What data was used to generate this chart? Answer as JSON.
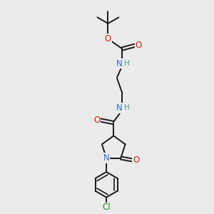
{
  "background_color": "#ebebeb",
  "bond_color": "#1a1a1a",
  "N_color": "#3a6abf",
  "O_color": "#cc2200",
  "Cl_color": "#2a8a2a",
  "H_color": "#5a9a9a",
  "font_size": 8.5,
  "figsize": [
    3.0,
    3.0
  ],
  "dpi": 100,
  "xlim": [
    0,
    10
  ],
  "ylim": [
    0,
    10
  ]
}
